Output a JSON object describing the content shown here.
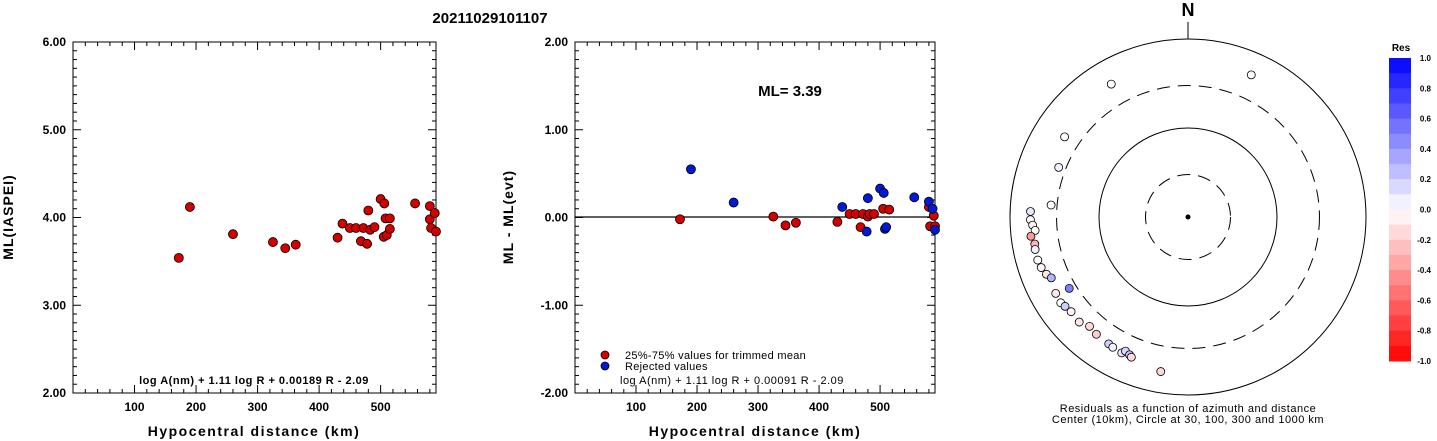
{
  "title": "20211029101107",
  "chart_data": [
    {
      "type": "scatter",
      "ylabel": "ML(IASPEI)",
      "xlabel": "Hypocentral distance (km)",
      "xlim": [
        0,
        590
      ],
      "ylim": [
        2.0,
        6.0
      ],
      "x_ticks": [
        "100",
        "200",
        "300",
        "400",
        "500"
      ],
      "y_ticks": [
        "2.00",
        "3.00",
        "4.00",
        "5.00",
        "6.00"
      ],
      "formula": "log A(nm) + 1.11 log R + 0.00189 R - 2.09",
      "points": [
        {
          "x": 172,
          "y": 3.54
        },
        {
          "x": 190,
          "y": 4.12
        },
        {
          "x": 260,
          "y": 3.81
        },
        {
          "x": 325,
          "y": 3.72
        },
        {
          "x": 345,
          "y": 3.65
        },
        {
          "x": 362,
          "y": 3.69
        },
        {
          "x": 430,
          "y": 3.77
        },
        {
          "x": 438,
          "y": 3.93
        },
        {
          "x": 450,
          "y": 3.88
        },
        {
          "x": 460,
          "y": 3.88
        },
        {
          "x": 468,
          "y": 3.73
        },
        {
          "x": 472,
          "y": 3.88
        },
        {
          "x": 478,
          "y": 3.7
        },
        {
          "x": 480,
          "y": 4.08
        },
        {
          "x": 483,
          "y": 3.86
        },
        {
          "x": 490,
          "y": 3.89
        },
        {
          "x": 500,
          "y": 4.21
        },
        {
          "x": 505,
          "y": 3.78
        },
        {
          "x": 506,
          "y": 4.16
        },
        {
          "x": 508,
          "y": 3.99
        },
        {
          "x": 510,
          "y": 3.8
        },
        {
          "x": 515,
          "y": 3.99
        },
        {
          "x": 515,
          "y": 3.87
        },
        {
          "x": 556,
          "y": 4.16
        },
        {
          "x": 580,
          "y": 4.13
        },
        {
          "x": 580,
          "y": 3.98
        },
        {
          "x": 582,
          "y": 3.88
        },
        {
          "x": 588,
          "y": 4.05
        },
        {
          "x": 590,
          "y": 3.84
        }
      ]
    },
    {
      "type": "scatter",
      "ylabel": "ML - ML(evt)",
      "xlabel": "Hypocentral distance (km)",
      "xlim": [
        0,
        590
      ],
      "ylim": [
        -2.0,
        2.0
      ],
      "x_ticks": [
        "100",
        "200",
        "300",
        "400",
        "500"
      ],
      "y_ticks": [
        "-2.00",
        "-1.00",
        "0.00",
        "1.00",
        "2.00"
      ],
      "annotation": "ML=  3.39",
      "formula": "log A(nm) + 1.11 log R + 0.00091 R - 2.09",
      "legend": [
        {
          "label": "25%-75% values for trimmed mean",
          "color": "#d40000"
        },
        {
          "label": "Rejected values",
          "color": "#0018d8"
        }
      ],
      "series": [
        {
          "name": "25%-75% values for trimmed mean",
          "color": "#d40000",
          "points": [
            {
              "x": 172,
              "y": -0.02
            },
            {
              "x": 325,
              "y": 0.01
            },
            {
              "x": 345,
              "y": -0.09
            },
            {
              "x": 362,
              "y": -0.06
            },
            {
              "x": 430,
              "y": -0.05
            },
            {
              "x": 450,
              "y": 0.04
            },
            {
              "x": 460,
              "y": 0.04
            },
            {
              "x": 468,
              "y": -0.11
            },
            {
              "x": 472,
              "y": 0.04
            },
            {
              "x": 480,
              "y": 0.01
            },
            {
              "x": 483,
              "y": 0.04
            },
            {
              "x": 490,
              "y": 0.04
            },
            {
              "x": 505,
              "y": 0.1
            },
            {
              "x": 515,
              "y": 0.09
            },
            {
              "x": 580,
              "y": 0.12
            },
            {
              "x": 582,
              "y": -0.1
            },
            {
              "x": 588,
              "y": 0.02
            },
            {
              "x": 590,
              "y": -0.1
            }
          ]
        },
        {
          "name": "Rejected values",
          "color": "#0018d8",
          "points": [
            {
              "x": 190,
              "y": 0.55
            },
            {
              "x": 260,
              "y": 0.17
            },
            {
              "x": 438,
              "y": 0.12
            },
            {
              "x": 478,
              "y": -0.16
            },
            {
              "x": 480,
              "y": 0.22
            },
            {
              "x": 500,
              "y": 0.33
            },
            {
              "x": 506,
              "y": 0.28
            },
            {
              "x": 508,
              "y": -0.13
            },
            {
              "x": 510,
              "y": -0.11
            },
            {
              "x": 556,
              "y": 0.23
            },
            {
              "x": 580,
              "y": 0.18
            },
            {
              "x": 586,
              "y": 0.1
            },
            {
              "x": 590,
              "y": -0.14
            }
          ]
        }
      ]
    },
    {
      "type": "polar",
      "north_label": "N",
      "caption_line1": "Residuals as a function of azimuth and distance",
      "caption_line2": "Center (10km), Circle at 30, 100, 300 and 1000 km",
      "rings_km": [
        30,
        100,
        300,
        1000
      ],
      "colorbar": {
        "title": "Res",
        "min": -1.0,
        "max": 1.0,
        "labels": [
          "1.0",
          "0.8",
          "0.6",
          "0.4",
          "0.2",
          "0.0",
          "-0.2",
          "-0.4",
          "-0.6",
          "-0.8",
          "-1.0"
        ]
      },
      "stations": [
        {
          "azimuth": 24,
          "distance": 560,
          "res": 0.0
        },
        {
          "azimuth": 330,
          "distance": 530,
          "res": 0.0
        },
        {
          "azimuth": 303,
          "distance": 450,
          "res": 0.0
        },
        {
          "azimuth": 291,
          "distance": 360,
          "res": 0.05
        },
        {
          "azimuth": 275,
          "distance": 350,
          "res": 0.0
        },
        {
          "azimuth": 272,
          "distance": 590,
          "res": 0.1
        },
        {
          "azimuth": 269,
          "distance": 590,
          "res": 0.0
        },
        {
          "azimuth": 267,
          "distance": 560,
          "res": -0.05
        },
        {
          "azimuth": 265,
          "distance": 530,
          "res": 0.0
        },
        {
          "azimuth": 263,
          "distance": 600,
          "res": -0.4
        },
        {
          "azimuth": 260,
          "distance": 560,
          "res": -0.3
        },
        {
          "azimuth": 258,
          "distance": 570,
          "res": 0.05
        },
        {
          "azimuth": 254,
          "distance": 570,
          "res": 0.0
        },
        {
          "azimuth": 251,
          "distance": 555,
          "res": -0.05
        },
        {
          "azimuth": 248,
          "distance": 520,
          "res": -0.1
        },
        {
          "azimuth": 246,
          "distance": 480,
          "res": 0.3
        },
        {
          "azimuth": 239,
          "distance": 360,
          "res": 0.5
        },
        {
          "azimuth": 240,
          "distance": 520,
          "res": -0.1
        },
        {
          "azimuth": 236,
          "distance": 530,
          "res": 0.0
        },
        {
          "azimuth": 234,
          "distance": 510,
          "res": 0.2
        },
        {
          "azimuth": 231,
          "distance": 490,
          "res": -0.05
        },
        {
          "azimuth": 226,
          "distance": 500,
          "res": -0.1
        },
        {
          "azimuth": 222,
          "distance": 450,
          "res": -0.15
        },
        {
          "azimuth": 218,
          "distance": 470,
          "res": -0.2
        },
        {
          "azimuth": 212,
          "distance": 480,
          "res": 0.2
        },
        {
          "azimuth": 210,
          "distance": 490,
          "res": 0.05
        },
        {
          "azimuth": 206,
          "distance": 500,
          "res": 0.1
        },
        {
          "azimuth": 205,
          "distance": 460,
          "res": 0.15
        },
        {
          "azimuth": 203,
          "distance": 480,
          "res": 0.25
        },
        {
          "azimuth": 202,
          "distance": 500,
          "res": -0.15
        },
        {
          "azimuth": 190,
          "distance": 580,
          "res": -0.15
        }
      ]
    }
  ]
}
